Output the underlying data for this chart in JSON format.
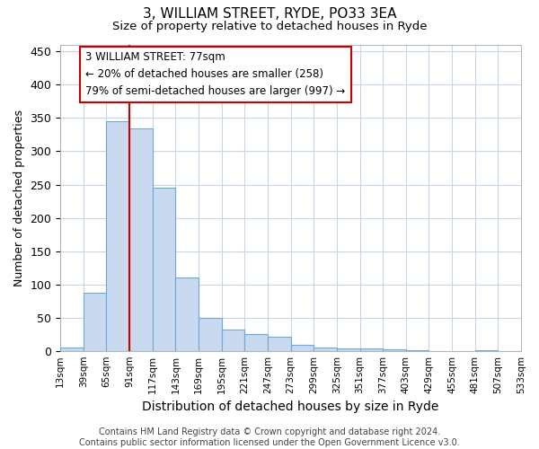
{
  "title_line1": "3, WILLIAM STREET, RYDE, PO33 3EA",
  "title_line2": "Size of property relative to detached houses in Ryde",
  "xlabel": "Distribution of detached houses by size in Ryde",
  "ylabel": "Number of detached properties",
  "footnote": "Contains HM Land Registry data © Crown copyright and database right 2024.\nContains public sector information licensed under the Open Government Licence v3.0.",
  "bar_values": [
    5,
    88,
    345,
    335,
    245,
    110,
    50,
    32,
    25,
    21,
    9,
    5,
    4,
    3,
    2,
    1,
    0,
    0,
    1,
    0
  ],
  "x_labels": [
    "13sqm",
    "39sqm",
    "65sqm",
    "91sqm",
    "117sqm",
    "143sqm",
    "169sqm",
    "195sqm",
    "221sqm",
    "247sqm",
    "273sqm",
    "299sqm",
    "325sqm",
    "351sqm",
    "377sqm",
    "403sqm",
    "429sqm",
    "455sqm",
    "481sqm",
    "507sqm",
    "533sqm"
  ],
  "bar_color": "#c8d9f0",
  "bar_edge_color": "#6aaad4",
  "bar_width": 1.0,
  "vline_x": 2.5,
  "vline_color": "#cc0000",
  "annotation_text": "3 WILLIAM STREET: 77sqm\n← 20% of detached houses are smaller (258)\n79% of semi-detached houses are larger (997) →",
  "annotation_box_color": "#ffffff",
  "annotation_box_edge": "#cc0000",
  "ylim": [
    0,
    460
  ],
  "yticks": [
    0,
    50,
    100,
    150,
    200,
    250,
    300,
    350,
    400,
    450
  ],
  "bg_color": "#ffffff",
  "grid_color": "#c8d4e8",
  "figsize": [
    6.0,
    5.0
  ],
  "dpi": 100
}
